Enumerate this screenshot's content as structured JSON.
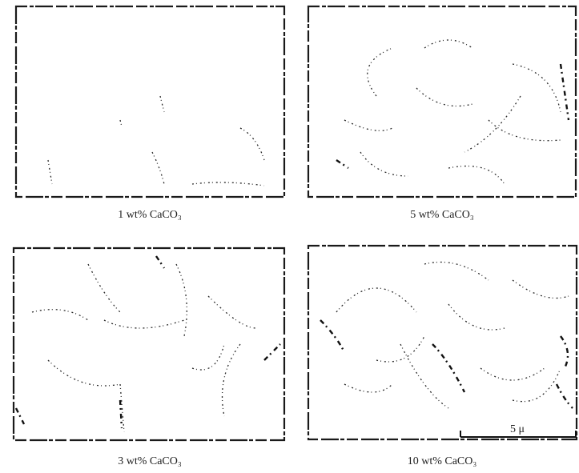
{
  "panels": [
    {
      "caption": "1 wt% CaCO₃"
    },
    {
      "caption": "5 wt% CaCO₃"
    },
    {
      "caption": "3 wt% CaCO₃"
    },
    {
      "caption": "10 wt% CaCO₃"
    }
  ],
  "scale_bar": {
    "label": "5 μ"
  }
}
